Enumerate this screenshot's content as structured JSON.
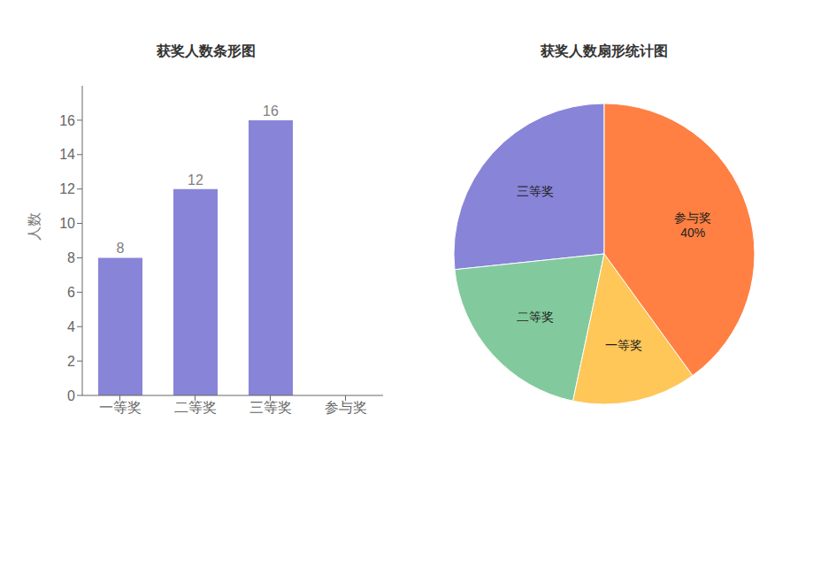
{
  "chart_data": [
    {
      "type": "bar",
      "title": "获奖人数条形图",
      "categories": [
        "一等奖",
        "二等奖",
        "三等奖",
        "参与奖"
      ],
      "values": [
        8,
        12,
        16,
        null
      ],
      "color": "#8884d8",
      "ylabel": "人数",
      "ylim": [
        0,
        18
      ],
      "yticks": [
        0,
        2,
        4,
        6,
        8,
        10,
        12,
        14,
        16
      ],
      "grid": false,
      "data_labels": true
    },
    {
      "type": "pie",
      "title": "获奖人数扇形统计图",
      "categories": [
        "三等奖",
        "二等奖",
        "一等奖",
        "参与奖"
      ],
      "values": [
        26.666666666666668,
        20,
        13.333333333333334,
        40
      ],
      "value_labels": [
        null,
        null,
        null,
        "40%"
      ],
      "colors": [
        "#8884d8",
        "#82ca9d",
        "#ffc658",
        "#ff8042"
      ]
    }
  ]
}
